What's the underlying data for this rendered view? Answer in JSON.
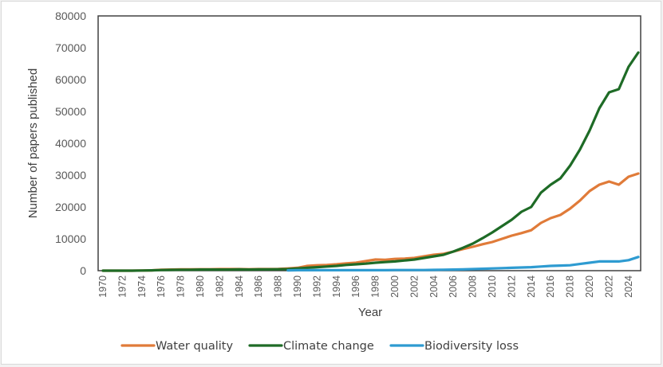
{
  "chart_data": {
    "type": "line",
    "title": "",
    "xlabel": "Year",
    "ylabel": "Number of papers published",
    "xlim": [
      1970,
      2025
    ],
    "ylim": [
      0,
      80000
    ],
    "grid": false,
    "legend_position": "bottom",
    "y_ticks": [
      "0",
      "10000",
      "20000",
      "30000",
      "40000",
      "50000",
      "60000",
      "70000",
      "80000"
    ],
    "y_tick_values": [
      0,
      10000,
      20000,
      30000,
      40000,
      50000,
      60000,
      70000,
      80000
    ],
    "x_ticks": [
      "1970",
      "1972",
      "1974",
      "1976",
      "1978",
      "1980",
      "1982",
      "1984",
      "1986",
      "1988",
      "1990",
      "1992",
      "1994",
      "1996",
      "1998",
      "2000",
      "2002",
      "2004",
      "2006",
      "2008",
      "2010",
      "2012",
      "2014",
      "2016",
      "2018",
      "2020",
      "2022",
      "2024"
    ],
    "x": [
      1970,
      1971,
      1972,
      1973,
      1974,
      1975,
      1976,
      1977,
      1978,
      1979,
      1980,
      1981,
      1982,
      1983,
      1984,
      1985,
      1986,
      1987,
      1988,
      1989,
      1990,
      1991,
      1992,
      1993,
      1994,
      1995,
      1996,
      1997,
      1998,
      1999,
      2000,
      2001,
      2002,
      2003,
      2004,
      2005,
      2006,
      2007,
      2008,
      2009,
      2010,
      2011,
      2012,
      2013,
      2014,
      2015,
      2016,
      2017,
      2018,
      2019,
      2020,
      2021,
      2022,
      2023,
      2024,
      2025
    ],
    "series": [
      {
        "name": "Water quality",
        "color": "#e07b39",
        "values": [
          0,
          0,
          0,
          0,
          50,
          100,
          300,
          350,
          400,
          400,
          450,
          450,
          500,
          500,
          500,
          450,
          500,
          500,
          550,
          700,
          900,
          1500,
          1700,
          1800,
          2000,
          2300,
          2500,
          3000,
          3500,
          3400,
          3700,
          3800,
          4000,
          4500,
          5000,
          5300,
          6000,
          6800,
          7500,
          8300,
          9000,
          10000,
          11000,
          11800,
          12700,
          15000,
          16500,
          17500,
          19500,
          22000,
          25000,
          27000,
          28000,
          27000,
          29500,
          30500
        ]
      },
      {
        "name": "Climate change",
        "color": "#1e6b26",
        "values": [
          0,
          0,
          0,
          0,
          50,
          100,
          200,
          250,
          300,
          300,
          350,
          350,
          350,
          350,
          400,
          350,
          400,
          400,
          450,
          500,
          700,
          900,
          1100,
          1300,
          1500,
          1800,
          2000,
          2200,
          2500,
          2700,
          2900,
          3200,
          3500,
          4000,
          4500,
          5000,
          6000,
          7200,
          8500,
          10200,
          12000,
          14000,
          16000,
          18500,
          20000,
          24500,
          27000,
          29000,
          33000,
          38000,
          44000,
          51000,
          56000,
          57000,
          64000,
          68500
        ]
      },
      {
        "name": "Biodiversity loss",
        "color": "#2e9bd1",
        "values": [
          null,
          null,
          null,
          null,
          null,
          null,
          null,
          null,
          null,
          null,
          null,
          null,
          null,
          null,
          null,
          null,
          null,
          null,
          null,
          100,
          150,
          150,
          150,
          150,
          150,
          150,
          150,
          150,
          150,
          150,
          200,
          200,
          200,
          200,
          250,
          300,
          350,
          400,
          500,
          600,
          700,
          800,
          900,
          1000,
          1100,
          1300,
          1500,
          1600,
          1700,
          2100,
          2500,
          2900,
          2900,
          2900,
          3300,
          4300
        ]
      }
    ]
  }
}
